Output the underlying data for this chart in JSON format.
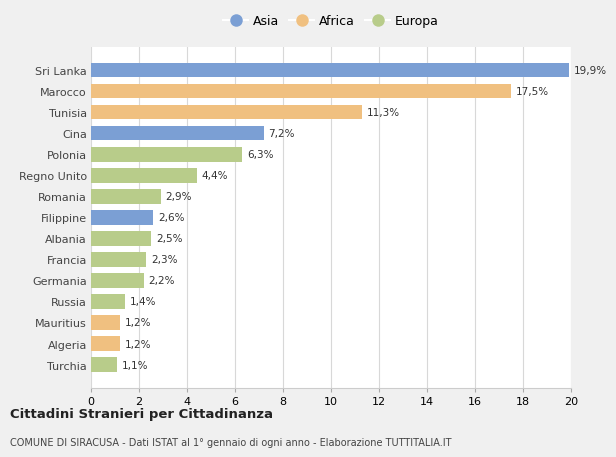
{
  "countries": [
    "Sri Lanka",
    "Marocco",
    "Tunisia",
    "Cina",
    "Polonia",
    "Regno Unito",
    "Romania",
    "Filippine",
    "Albania",
    "Francia",
    "Germania",
    "Russia",
    "Mauritius",
    "Algeria",
    "Turchia"
  ],
  "values": [
    19.9,
    17.5,
    11.3,
    7.2,
    6.3,
    4.4,
    2.9,
    2.6,
    2.5,
    2.3,
    2.2,
    1.4,
    1.2,
    1.2,
    1.1
  ],
  "labels": [
    "19,9%",
    "17,5%",
    "11,3%",
    "7,2%",
    "6,3%",
    "4,4%",
    "2,9%",
    "2,6%",
    "2,5%",
    "2,3%",
    "2,2%",
    "1,4%",
    "1,2%",
    "1,2%",
    "1,1%"
  ],
  "continents": [
    "Asia",
    "Africa",
    "Africa",
    "Asia",
    "Europa",
    "Europa",
    "Europa",
    "Asia",
    "Europa",
    "Europa",
    "Europa",
    "Europa",
    "Africa",
    "Africa",
    "Europa"
  ],
  "colors": {
    "Asia": "#7b9fd4",
    "Africa": "#f0c080",
    "Europa": "#b8cc8a"
  },
  "legend_labels": [
    "Asia",
    "Africa",
    "Europa"
  ],
  "title": "Cittadini Stranieri per Cittadinanza",
  "subtitle": "COMUNE DI SIRACUSA - Dati ISTAT al 1° gennaio di ogni anno - Elaborazione TUTTITALIA.IT",
  "xlim": [
    0,
    20
  ],
  "xticks": [
    0,
    2,
    4,
    6,
    8,
    10,
    12,
    14,
    16,
    18,
    20
  ],
  "background_color": "#f0f0f0",
  "bar_background": "#ffffff",
  "grid_color": "#d8d8d8"
}
